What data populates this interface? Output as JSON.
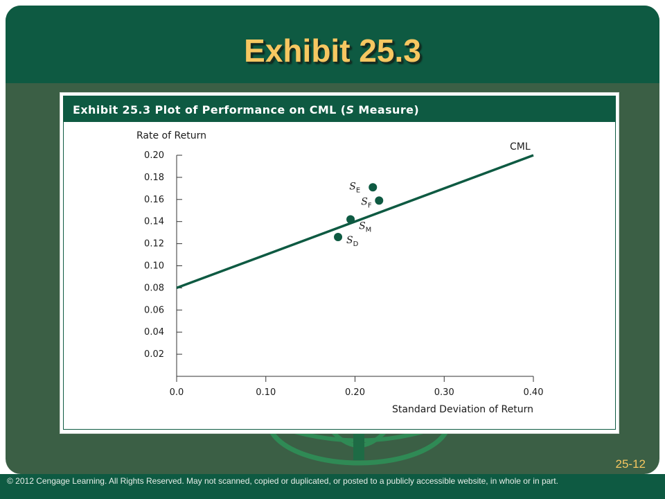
{
  "slide": {
    "title": "Exhibit 25.3",
    "page_number": "25-12",
    "footer": "© 2012 Cengage Learning.  All Rights Reserved. May not scanned, copied or duplicated, or posted to a publicly accessible website, in whole or in part."
  },
  "exhibit": {
    "title_main": "Exhibit 25.3 Plot of Performance on CML (",
    "title_italic": "S",
    "title_end": " Measure)"
  },
  "colors": {
    "brand_green": "#0e5a42",
    "title_gold": "#f6c761",
    "frame_green": "#3b5f45"
  },
  "chart_data": {
    "type": "scatter",
    "ylabel": "Rate of Return",
    "xlabel": "Standard Deviation of Return",
    "xlim": [
      0.0,
      0.4
    ],
    "ylim": [
      0.0,
      0.2
    ],
    "x_ticks": [
      "0.0",
      "0.10",
      "0.20",
      "0.30",
      "0.40"
    ],
    "y_ticks": [
      "0.02",
      "0.04",
      "0.06",
      "0.08",
      "0.10",
      "0.12",
      "0.14",
      "0.16",
      "0.18",
      "0.20"
    ],
    "grid": false,
    "line": {
      "name": "CML",
      "x": [
        0.0,
        0.4
      ],
      "y": [
        0.08,
        0.2
      ]
    },
    "points": [
      {
        "label": "S",
        "sub": "E",
        "x": 0.22,
        "y": 0.171
      },
      {
        "label": "S",
        "sub": "F",
        "x": 0.227,
        "y": 0.159
      },
      {
        "label": "S",
        "sub": "M",
        "x": 0.195,
        "y": 0.142
      },
      {
        "label": "S",
        "sub": "D",
        "x": 0.181,
        "y": 0.126
      }
    ]
  }
}
